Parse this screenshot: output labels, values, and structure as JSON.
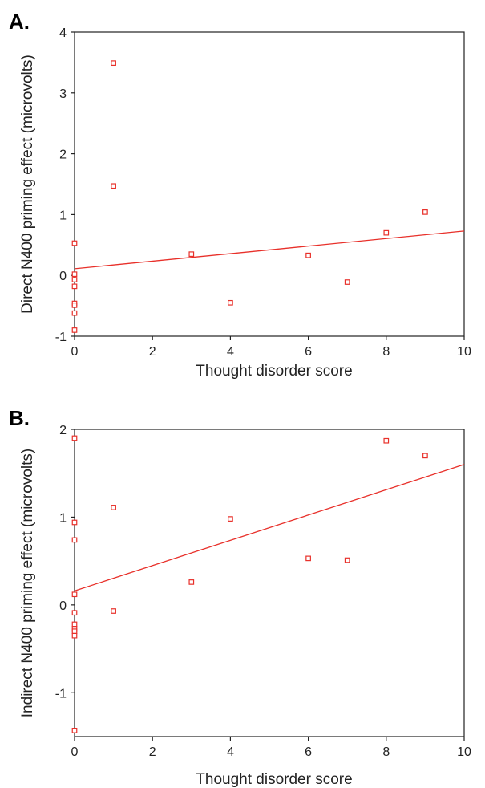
{
  "panels": [
    {
      "letter": "A."
    },
    {
      "letter": "B."
    }
  ],
  "chart_data": [
    {
      "type": "scatter",
      "panel": "A.",
      "xlabel": "Thought disorder score",
      "ylabel": "Direct N400 priming effect (microvolts)",
      "xlim": [
        0,
        10
      ],
      "ylim": [
        -1,
        4
      ],
      "xticks": [
        "0",
        "2",
        "4",
        "6",
        "8",
        "10"
      ],
      "yticks": [
        "-1",
        "0",
        "1",
        "2",
        "3",
        "4"
      ],
      "marker_color": "#e8302a",
      "line_color": "#e8302a",
      "points": [
        {
          "x": 0,
          "y": 0.53
        },
        {
          "x": 0,
          "y": 0.02
        },
        {
          "x": 0,
          "y": -0.07
        },
        {
          "x": 0,
          "y": -0.18
        },
        {
          "x": 0,
          "y": -0.46
        },
        {
          "x": 0,
          "y": -0.49
        },
        {
          "x": 0,
          "y": -0.62
        },
        {
          "x": 0,
          "y": -0.9
        },
        {
          "x": 1,
          "y": 3.49
        },
        {
          "x": 1,
          "y": 1.47
        },
        {
          "x": 3,
          "y": 0.35
        },
        {
          "x": 4,
          "y": -0.45
        },
        {
          "x": 6,
          "y": 0.33
        },
        {
          "x": 7,
          "y": -0.11
        },
        {
          "x": 8,
          "y": 0.7
        },
        {
          "x": 9,
          "y": 1.04
        }
      ],
      "fit_line": {
        "x": [
          0,
          10
        ],
        "y": [
          0.11,
          0.73
        ]
      }
    },
    {
      "type": "scatter",
      "panel": "B.",
      "xlabel": "Thought disorder score",
      "ylabel": "Indirect N400 priming effect (microvolts)",
      "xlim": [
        0,
        10
      ],
      "ylim": [
        -1.5,
        2
      ],
      "xticks": [
        "0",
        "2",
        "4",
        "6",
        "8",
        "10"
      ],
      "yticks": [
        "-1",
        "0",
        "1",
        "2"
      ],
      "marker_color": "#e8302a",
      "line_color": "#e8302a",
      "points": [
        {
          "x": 0,
          "y": 1.9
        },
        {
          "x": 0,
          "y": 0.94
        },
        {
          "x": 0,
          "y": 0.74
        },
        {
          "x": 0,
          "y": 0.12
        },
        {
          "x": 0,
          "y": -0.09
        },
        {
          "x": 0,
          "y": -0.22
        },
        {
          "x": 0,
          "y": -0.27
        },
        {
          "x": 0,
          "y": -0.3
        },
        {
          "x": 0,
          "y": -0.35
        },
        {
          "x": 0,
          "y": -1.43
        },
        {
          "x": 1,
          "y": 1.11
        },
        {
          "x": 1,
          "y": -0.07
        },
        {
          "x": 3,
          "y": 0.26
        },
        {
          "x": 4,
          "y": 0.98
        },
        {
          "x": 6,
          "y": 0.53
        },
        {
          "x": 7,
          "y": 0.51
        },
        {
          "x": 8,
          "y": 1.87
        },
        {
          "x": 9,
          "y": 1.7
        }
      ],
      "fit_line": {
        "x": [
          0,
          10
        ],
        "y": [
          0.16,
          1.6
        ]
      }
    }
  ]
}
